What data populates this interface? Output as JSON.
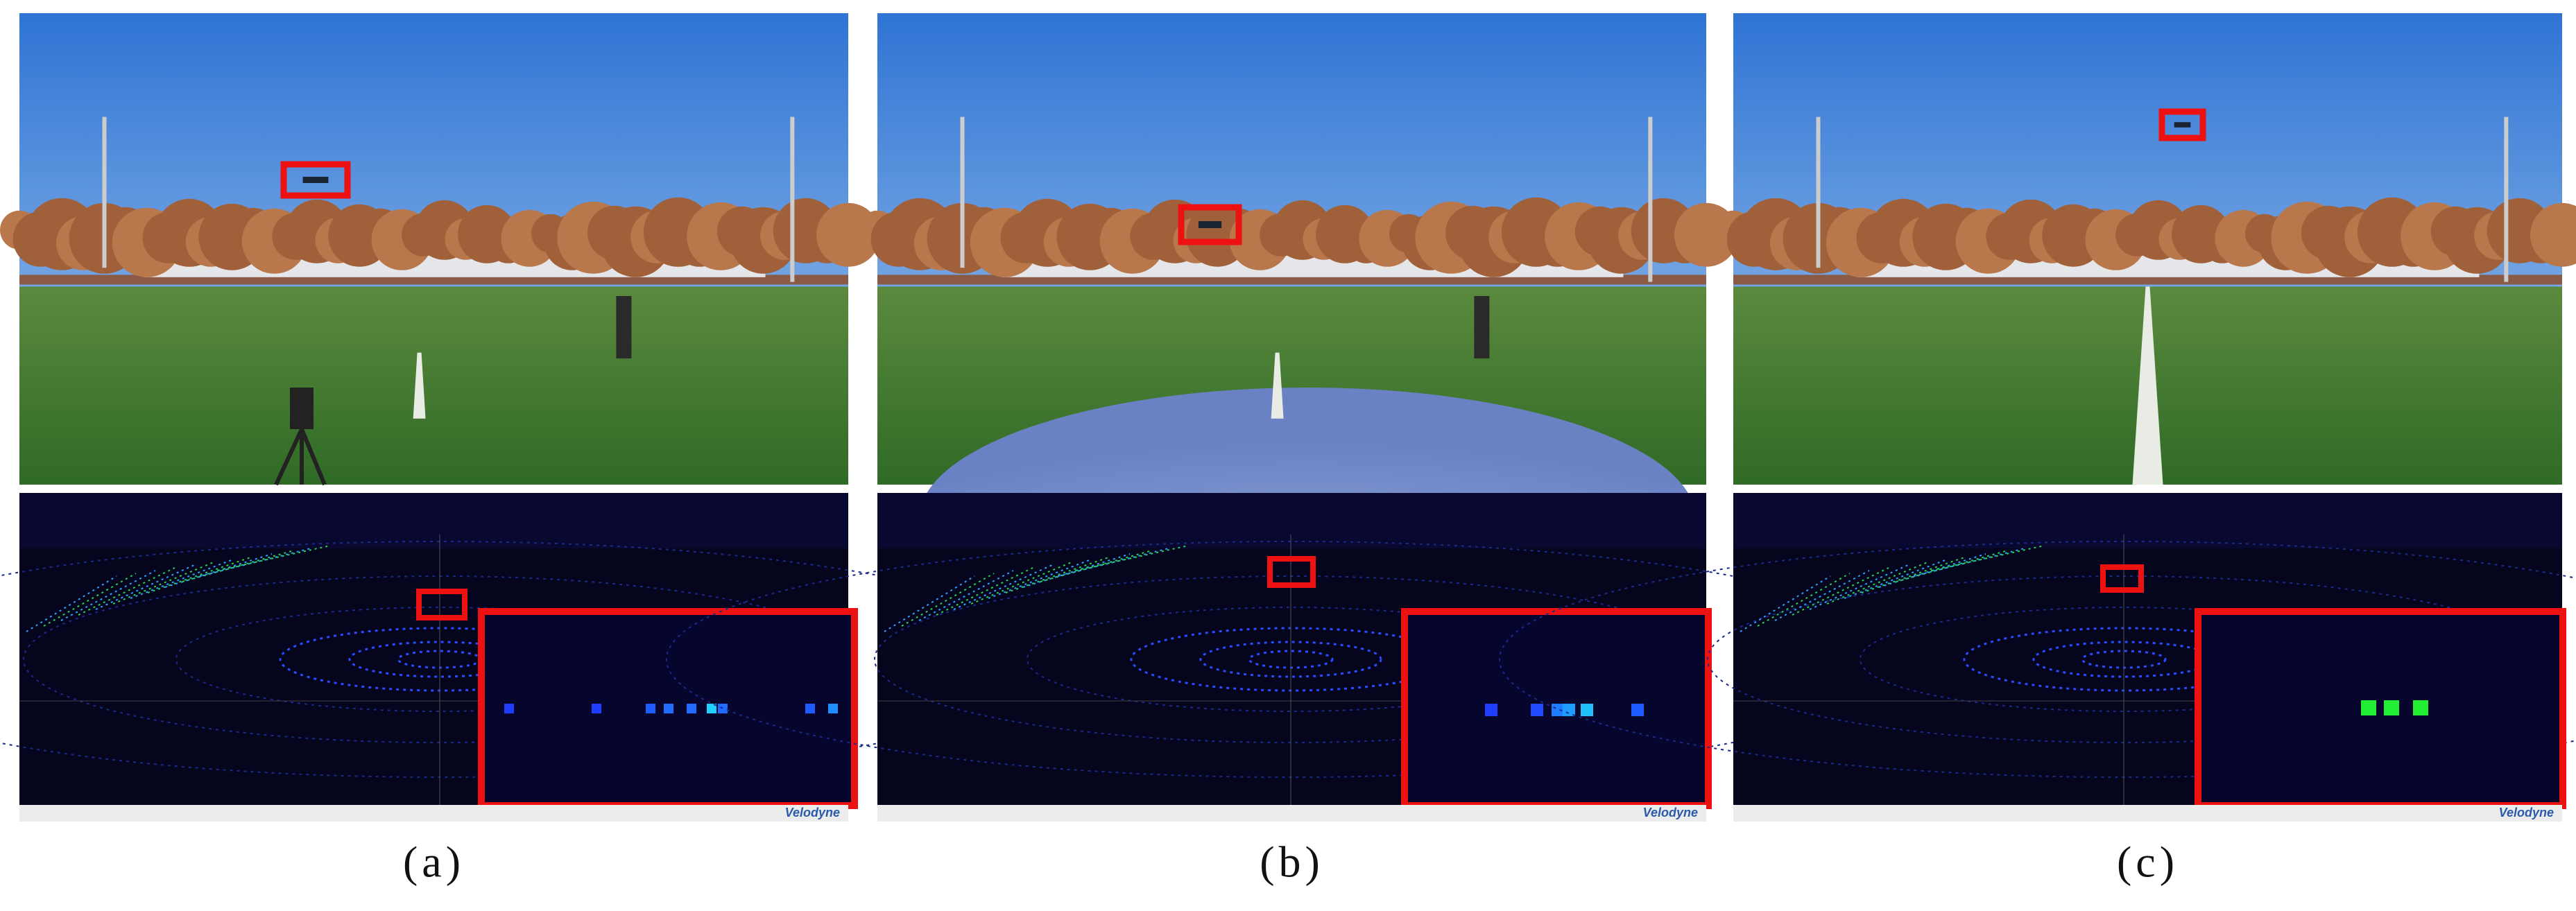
{
  "panels": [
    {
      "label": "(a)",
      "logo": "Velodyne"
    },
    {
      "label": "(b)",
      "logo": "Velodyne"
    },
    {
      "label": "(c)",
      "logo": "Velodyne"
    }
  ]
}
